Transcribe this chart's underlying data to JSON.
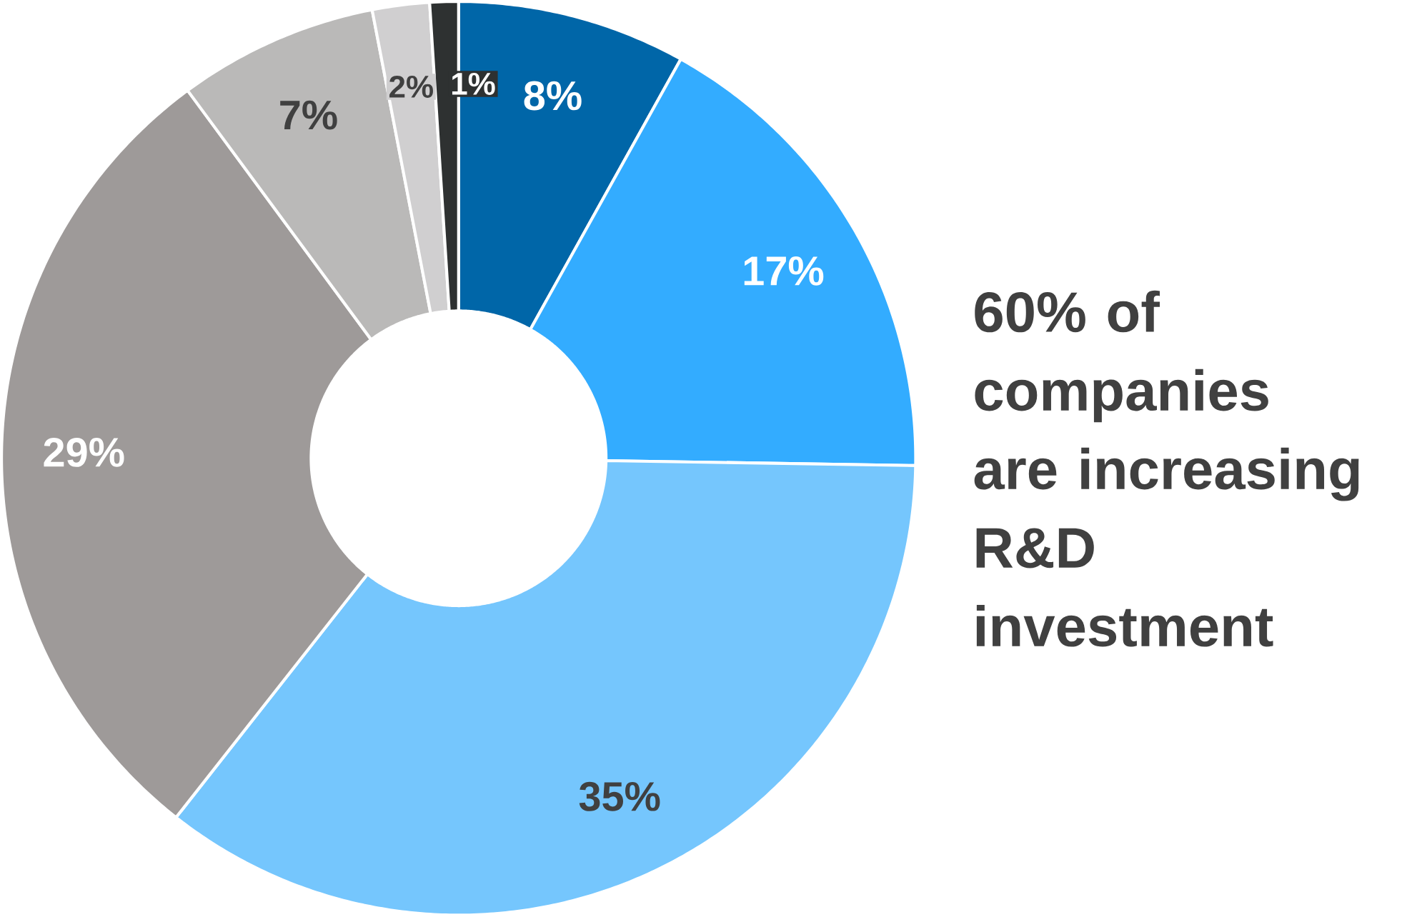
{
  "chart_data": {
    "type": "donut",
    "categories": [
      null,
      null,
      null,
      null,
      null,
      null,
      null
    ],
    "values": [
      8,
      17,
      35,
      29,
      7,
      2,
      1
    ],
    "value_labels": [
      "8%",
      "17%",
      "35%",
      "29%",
      "7%",
      "2%",
      "1%"
    ],
    "colors": [
      "#0066a8",
      "#33acff",
      "#75c6fd",
      "#9e9a99",
      "#bab9b8",
      "#d0cfd0",
      "#2e3131"
    ],
    "annotations": [
      "60% of companies are increasing R&D investment"
    ]
  }
}
